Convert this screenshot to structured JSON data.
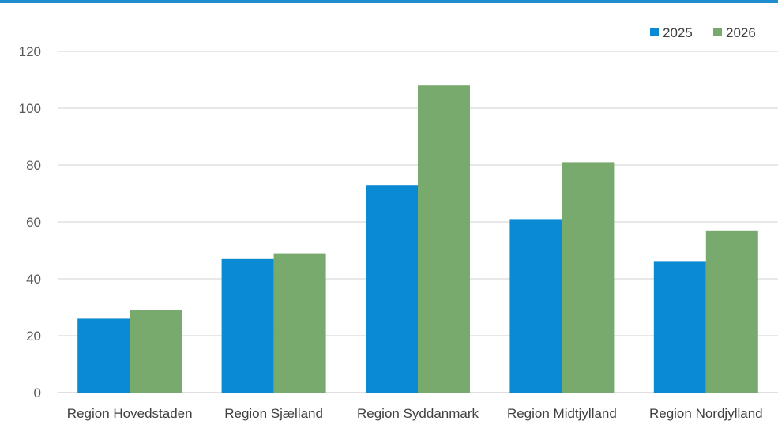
{
  "colors": {
    "top_rule": "#1f8dcf",
    "series_2025": "#0a8ad2",
    "series_2026": "#78aa6e",
    "gridline": "#d0d0d0",
    "axis": "#bfbfbf"
  },
  "chart_data": {
    "type": "bar",
    "categories": [
      "Region Hovedstaden",
      "Region Sjælland",
      "Region Syddanmark",
      "Region Midtjylland",
      "Region Nordjylland"
    ],
    "series": [
      {
        "name": "2025",
        "values": [
          26,
          47,
          73,
          61,
          46
        ]
      },
      {
        "name": "2026",
        "values": [
          29,
          49,
          108,
          81,
          57
        ]
      }
    ],
    "y_ticks": [
      "0",
      "20",
      "40",
      "60",
      "80",
      "100",
      "120"
    ],
    "ylim": [
      0,
      120
    ],
    "grid": true,
    "legend_position": "top-right"
  }
}
